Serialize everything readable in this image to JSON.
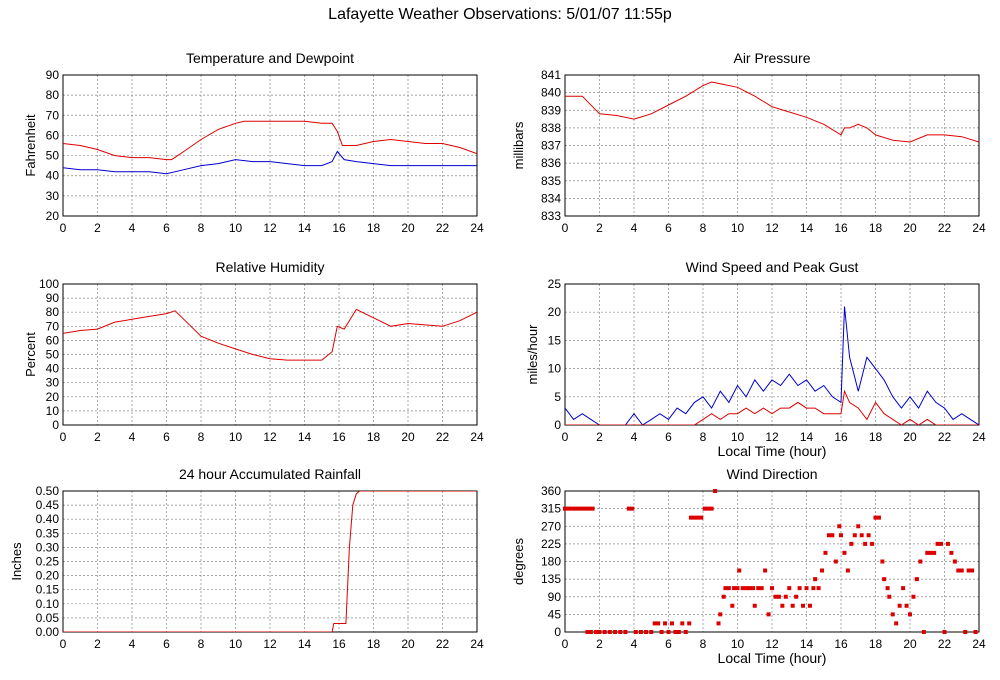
{
  "page": {
    "title": "Lafayette Weather Observations: 5/01/07 11:55p"
  },
  "chart_data": [
    {
      "id": "temp",
      "type": "line",
      "title": "Temperature and Dewpoint",
      "xlabel": "",
      "ylabel": "Fahrenheit",
      "xlim": [
        0,
        24
      ],
      "ylim": [
        20,
        90
      ],
      "xticks": [
        0,
        2,
        4,
        6,
        8,
        10,
        12,
        14,
        16,
        18,
        20,
        22,
        24
      ],
      "yticks": [
        20,
        30,
        40,
        50,
        60,
        70,
        80,
        90
      ],
      "grid": true,
      "series": [
        {
          "color": "#dd0000",
          "x": [
            0,
            1,
            2,
            3,
            4,
            5,
            6,
            6.3,
            7,
            8,
            9,
            10,
            10.5,
            11,
            12,
            13,
            14,
            15,
            15.6,
            15.9,
            16.2,
            17,
            18,
            19,
            20,
            21,
            22,
            23,
            24
          ],
          "y": [
            56,
            55,
            53,
            50,
            49,
            49,
            48,
            48,
            52,
            58,
            63,
            66,
            67,
            67,
            67,
            67,
            67,
            66,
            66,
            62,
            55,
            55,
            57,
            58,
            57,
            56,
            56,
            54,
            51
          ]
        },
        {
          "color": "#0000cc",
          "x": [
            0,
            1,
            2,
            3,
            4,
            5,
            6,
            7,
            8,
            9,
            10,
            11,
            12,
            13,
            14,
            15,
            15.6,
            15.9,
            16.3,
            17,
            18,
            19,
            20,
            21,
            22,
            23,
            24
          ],
          "y": [
            44,
            43,
            43,
            42,
            42,
            42,
            41,
            43,
            45,
            46,
            48,
            47,
            47,
            46,
            45,
            45,
            47,
            52,
            48,
            47,
            46,
            45,
            45,
            45,
            45,
            45,
            45
          ]
        }
      ]
    },
    {
      "id": "pressure",
      "type": "line",
      "title": "Air Pressure",
      "xlabel": "",
      "ylabel": "millibars",
      "xlim": [
        0,
        24
      ],
      "ylim": [
        833,
        841
      ],
      "xticks": [
        0,
        2,
        4,
        6,
        8,
        10,
        12,
        14,
        16,
        18,
        20,
        22,
        24
      ],
      "yticks": [
        833,
        834,
        835,
        836,
        837,
        838,
        839,
        840,
        841
      ],
      "grid": true,
      "series": [
        {
          "color": "#dd0000",
          "x": [
            0,
            1,
            2,
            3,
            4,
            5,
            6,
            7,
            8,
            8.5,
            9,
            10,
            11,
            12,
            13,
            14,
            15,
            16,
            16.2,
            16.5,
            17,
            17.5,
            18,
            19,
            20,
            21,
            22,
            23,
            24
          ],
          "y": [
            839.8,
            839.8,
            838.8,
            838.7,
            838.5,
            838.8,
            839.3,
            839.8,
            840.4,
            840.6,
            840.5,
            840.3,
            839.8,
            839.2,
            838.9,
            838.6,
            838.2,
            837.6,
            838.0,
            838.0,
            838.2,
            838.0,
            837.6,
            837.3,
            837.2,
            837.6,
            837.6,
            837.5,
            837.2
          ]
        }
      ]
    },
    {
      "id": "humidity",
      "type": "line",
      "title": "Relative Humidity",
      "xlabel": "",
      "ylabel": "Percent",
      "xlim": [
        0,
        24
      ],
      "ylim": [
        0,
        100
      ],
      "xticks": [
        0,
        2,
        4,
        6,
        8,
        10,
        12,
        14,
        16,
        18,
        20,
        22,
        24
      ],
      "yticks": [
        0,
        10,
        20,
        30,
        40,
        50,
        60,
        70,
        80,
        90,
        100
      ],
      "grid": true,
      "series": [
        {
          "color": "#dd0000",
          "x": [
            0,
            1,
            2,
            3,
            4,
            5,
            6,
            6.5,
            7,
            8,
            9,
            10,
            11,
            12,
            13,
            14,
            15,
            15.6,
            15.9,
            16.3,
            17,
            18,
            19,
            20,
            21,
            22,
            23,
            24
          ],
          "y": [
            65,
            67,
            68,
            73,
            75,
            77,
            79,
            81,
            75,
            63,
            58,
            54,
            50,
            47,
            46,
            46,
            46,
            52,
            70,
            68,
            82,
            76,
            70,
            72,
            71,
            70,
            74,
            80
          ]
        }
      ]
    },
    {
      "id": "wind",
      "type": "line",
      "title": "Wind Speed and Peak Gust",
      "xlabel": "Local Time (hour)",
      "ylabel": "miles/hour",
      "xlim": [
        0,
        24
      ],
      "ylim": [
        0,
        25
      ],
      "xticks": [
        0,
        2,
        4,
        6,
        8,
        10,
        12,
        14,
        16,
        18,
        20,
        22,
        24
      ],
      "yticks": [
        0,
        5,
        10,
        15,
        20,
        25
      ],
      "grid": true,
      "series": [
        {
          "color": "#0000cc",
          "x": [
            0,
            0.5,
            1,
            1.5,
            2,
            3,
            3.5,
            4,
            4.5,
            5,
            5.5,
            6,
            6.5,
            7,
            7.5,
            8,
            8.5,
            9,
            9.5,
            10,
            10.5,
            11,
            11.5,
            12,
            12.5,
            13,
            13.5,
            14,
            14.5,
            15,
            15.5,
            16,
            16.2,
            16.5,
            17,
            17.5,
            18,
            18.5,
            19,
            19.5,
            20,
            20.5,
            21,
            21.5,
            22,
            22.5,
            23,
            23.5,
            24
          ],
          "y": [
            3,
            1,
            2,
            1,
            0,
            0,
            0,
            2,
            0,
            1,
            2,
            1,
            3,
            2,
            4,
            5,
            3,
            6,
            4,
            7,
            5,
            8,
            6,
            8,
            7,
            9,
            7,
            8,
            6,
            7,
            5,
            4,
            21,
            12,
            6,
            12,
            10,
            8,
            5,
            3,
            5,
            3,
            6,
            4,
            3,
            1,
            2,
            1,
            0
          ]
        },
        {
          "color": "#dd0000",
          "x": [
            0,
            1,
            2,
            3,
            4,
            5,
            6,
            7,
            7.5,
            8,
            8.5,
            9,
            9.5,
            10,
            10.5,
            11,
            11.5,
            12,
            12.5,
            13,
            13.5,
            14,
            14.5,
            15,
            15.5,
            16,
            16.2,
            16.5,
            17,
            17.5,
            18,
            18.5,
            19,
            19.5,
            20,
            20.5,
            21,
            21.5,
            22,
            23,
            24
          ],
          "y": [
            0,
            0,
            0,
            0,
            0,
            0,
            0,
            0,
            0,
            1,
            2,
            1,
            2,
            2,
            3,
            2,
            3,
            2,
            3,
            3,
            4,
            3,
            3,
            2,
            2,
            2,
            6,
            4,
            3,
            1,
            4,
            2,
            1,
            0,
            1,
            0,
            1,
            0,
            0,
            0,
            0
          ]
        }
      ]
    },
    {
      "id": "rain",
      "type": "line",
      "title": "24 hour Accumulated Rainfall",
      "xlabel": "",
      "ylabel": "Inches",
      "xlim": [
        0,
        24
      ],
      "ylim": [
        0,
        0.5
      ],
      "xticks": [
        0,
        2,
        4,
        6,
        8,
        10,
        12,
        14,
        16,
        18,
        20,
        22,
        24
      ],
      "yticks": [
        0.0,
        0.05,
        0.1,
        0.15,
        0.2,
        0.25,
        0.3,
        0.35,
        0.4,
        0.45,
        0.5
      ],
      "ytick_labels": [
        "0.00",
        "0.05",
        "0.10",
        "0.15",
        "0.20",
        "0.25",
        "0.30",
        "0.35",
        "0.40",
        "0.45",
        "0.50"
      ],
      "grid": true,
      "series": [
        {
          "color": "#dd0000",
          "x": [
            0,
            15.6,
            15.7,
            16.4,
            16.6,
            16.8,
            17.0,
            17.2,
            24
          ],
          "y": [
            0,
            0,
            0.03,
            0.03,
            0.3,
            0.45,
            0.49,
            0.5,
            0.5
          ]
        }
      ]
    },
    {
      "id": "direction",
      "type": "scatter",
      "title": "Wind Direction",
      "xlabel": "Local Time (hour)",
      "ylabel": "degrees",
      "xlim": [
        0,
        24
      ],
      "ylim": [
        0,
        360
      ],
      "xticks": [
        0,
        2,
        4,
        6,
        8,
        10,
        12,
        14,
        16,
        18,
        20,
        22,
        24
      ],
      "yticks": [
        0,
        45,
        90,
        135,
        180,
        225,
        270,
        315,
        360
      ],
      "grid": true,
      "series": [
        {
          "color": "#dd0000",
          "points": [
            [
              0,
              315
            ],
            [
              0.2,
              315
            ],
            [
              0.4,
              315
            ],
            [
              0.6,
              315
            ],
            [
              0.8,
              315
            ],
            [
              1.0,
              315
            ],
            [
              1.2,
              315
            ],
            [
              1.4,
              315
            ],
            [
              1.6,
              315
            ],
            [
              1.3,
              0
            ],
            [
              1.5,
              0
            ],
            [
              1.8,
              0
            ],
            [
              2.0,
              0
            ],
            [
              2.3,
              0
            ],
            [
              2.6,
              0
            ],
            [
              2.9,
              0
            ],
            [
              3.2,
              0
            ],
            [
              3.5,
              0
            ],
            [
              3.7,
              315
            ],
            [
              3.9,
              315
            ],
            [
              4.1,
              0
            ],
            [
              4.4,
              0
            ],
            [
              4.7,
              0
            ],
            [
              5.0,
              0
            ],
            [
              5.2,
              22
            ],
            [
              5.4,
              22
            ],
            [
              5.6,
              0
            ],
            [
              5.8,
              22
            ],
            [
              6.0,
              0
            ],
            [
              6.2,
              22
            ],
            [
              6.4,
              0
            ],
            [
              6.6,
              0
            ],
            [
              6.8,
              22
            ],
            [
              7.0,
              0
            ],
            [
              7.2,
              22
            ],
            [
              7.3,
              292
            ],
            [
              7.5,
              292
            ],
            [
              7.7,
              292
            ],
            [
              7.9,
              292
            ],
            [
              8.1,
              315
            ],
            [
              8.3,
              315
            ],
            [
              8.5,
              315
            ],
            [
              8.7,
              360
            ],
            [
              8.9,
              22
            ],
            [
              9.0,
              45
            ],
            [
              9.2,
              90
            ],
            [
              9.3,
              112
            ],
            [
              9.5,
              112
            ],
            [
              9.7,
              67
            ],
            [
              9.8,
              112
            ],
            [
              10.0,
              112
            ],
            [
              10.1,
              157
            ],
            [
              10.3,
              112
            ],
            [
              10.5,
              112
            ],
            [
              10.7,
              112
            ],
            [
              10.9,
              112
            ],
            [
              11.0,
              67
            ],
            [
              11.2,
              112
            ],
            [
              11.4,
              112
            ],
            [
              11.6,
              157
            ],
            [
              11.8,
              45
            ],
            [
              12.0,
              112
            ],
            [
              12.2,
              90
            ],
            [
              12.4,
              90
            ],
            [
              12.6,
              67
            ],
            [
              12.8,
              90
            ],
            [
              13.0,
              112
            ],
            [
              13.2,
              67
            ],
            [
              13.4,
              90
            ],
            [
              13.6,
              112
            ],
            [
              13.8,
              67
            ],
            [
              14.0,
              112
            ],
            [
              14.2,
              67
            ],
            [
              14.4,
              112
            ],
            [
              14.5,
              135
            ],
            [
              14.7,
              112
            ],
            [
              14.9,
              157
            ],
            [
              15.1,
              202
            ],
            [
              15.3,
              247
            ],
            [
              15.5,
              247
            ],
            [
              15.7,
              180
            ],
            [
              15.9,
              270
            ],
            [
              16.0,
              247
            ],
            [
              16.2,
              202
            ],
            [
              16.4,
              157
            ],
            [
              16.6,
              225
            ],
            [
              16.8,
              247
            ],
            [
              17.0,
              270
            ],
            [
              17.2,
              247
            ],
            [
              17.4,
              225
            ],
            [
              17.6,
              247
            ],
            [
              17.8,
              225
            ],
            [
              18.0,
              292
            ],
            [
              18.2,
              292
            ],
            [
              18.4,
              180
            ],
            [
              18.5,
              135
            ],
            [
              18.7,
              112
            ],
            [
              18.8,
              90
            ],
            [
              19.0,
              45
            ],
            [
              19.2,
              22
            ],
            [
              19.4,
              67
            ],
            [
              19.6,
              112
            ],
            [
              19.8,
              67
            ],
            [
              20.0,
              45
            ],
            [
              20.2,
              90
            ],
            [
              20.4,
              135
            ],
            [
              20.6,
              180
            ],
            [
              20.8,
              0
            ],
            [
              21.0,
              202
            ],
            [
              21.2,
              202
            ],
            [
              21.4,
              202
            ],
            [
              21.6,
              225
            ],
            [
              21.8,
              225
            ],
            [
              22.0,
              0
            ],
            [
              22.2,
              225
            ],
            [
              22.4,
              202
            ],
            [
              22.6,
              180
            ],
            [
              22.8,
              157
            ],
            [
              23.0,
              157
            ],
            [
              23.2,
              0
            ],
            [
              23.4,
              157
            ],
            [
              23.6,
              157
            ],
            [
              23.8,
              0
            ]
          ]
        }
      ]
    }
  ]
}
